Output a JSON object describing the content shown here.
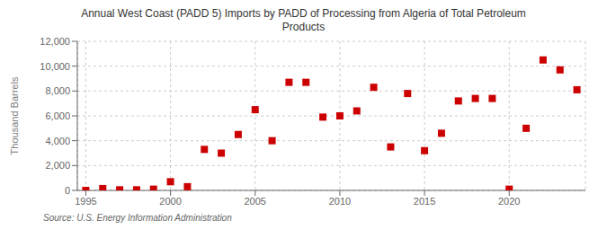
{
  "chart_data": {
    "type": "scatter",
    "title": "Annual West Coast (PADD 5) Imports by PADD of Processing from Algeria of Total Petroleum\nProducts",
    "ylabel": "Thousand Barrels",
    "annotations": [
      "Source: U.S. Energy Information Administration"
    ],
    "x": [
      1995,
      1996,
      1997,
      1998,
      1999,
      2000,
      2001,
      2002,
      2003,
      2004,
      2005,
      2006,
      2007,
      2008,
      2009,
      2010,
      2011,
      2012,
      2013,
      2014,
      2015,
      2016,
      2017,
      2018,
      2019,
      2020,
      2021,
      2022,
      2023,
      2024
    ],
    "values": [
      0,
      150,
      50,
      50,
      100,
      700,
      300,
      3300,
      3000,
      4500,
      6500,
      4000,
      8700,
      8700,
      5900,
      6000,
      6400,
      8300,
      3500,
      7800,
      3200,
      4600,
      7200,
      7400,
      7400,
      100,
      5000,
      10500,
      9700,
      8100
    ],
    "color": "#cc0000",
    "marker": "square",
    "xlim": [
      1994.5,
      2024.5
    ],
    "xticks": [
      1995,
      2000,
      2005,
      2010,
      2015,
      2020
    ],
    "ylim": [
      0,
      12000
    ],
    "yticks": [
      0,
      {
        "value": 2000,
        "label": "2,000"
      },
      {
        "value": 4000,
        "label": "4,000"
      },
      {
        "value": 6000,
        "label": "6,000"
      },
      {
        "value": 8000,
        "label": "8,000"
      },
      {
        "value": 10000,
        "label": "10,000"
      },
      {
        "value": 12000,
        "label": "12,000"
      }
    ],
    "grid": true
  }
}
